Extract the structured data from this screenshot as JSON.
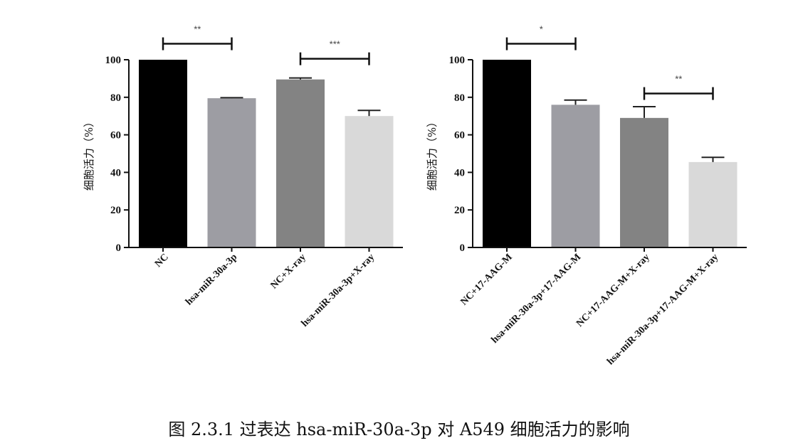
{
  "caption": "图 2.3.1 过表达 hsa-miR-30a-3p 对 A549 细胞活力的影响",
  "colors": [
    "#000000",
    "#9d9da3",
    "#838383",
    "#d9d9d9"
  ],
  "chart_data": [
    {
      "type": "bar",
      "ylabel": "细胞活力（%）",
      "ylim": [
        0,
        100
      ],
      "yticks": [
        "0",
        "20",
        "40",
        "60",
        "80",
        "100"
      ],
      "categories": [
        "NC",
        "hsa-miR-30a-3p",
        "NC+X-ray",
        "hsa-miR-30a-3p+X-ray"
      ],
      "values": [
        100,
        79.5,
        89.5,
        70
      ],
      "errors": [
        0,
        0.3,
        0.8,
        3
      ],
      "significance": [
        {
          "from": 0,
          "to": 1,
          "label": "**",
          "y": 108.5
        },
        {
          "from": 2,
          "to": 3,
          "label": "***",
          "y": 100.5
        }
      ]
    },
    {
      "type": "bar",
      "ylabel": "细胞活力（%）",
      "ylim": [
        0,
        100
      ],
      "yticks": [
        "0",
        "20",
        "40",
        "60",
        "80",
        "100"
      ],
      "categories": [
        "NC+17-AAG-M",
        "hsa-miR-30a-3p+17-AAG-M",
        "NC+17-AAG-M+X-ray",
        "hsa-miR-30a-3p+17-AAG-M+X-ray"
      ],
      "values": [
        100,
        76,
        69,
        45.5
      ],
      "errors": [
        0,
        2.5,
        6,
        2.5
      ],
      "significance": [
        {
          "from": 0,
          "to": 1,
          "label": "*",
          "y": 108.5
        },
        {
          "from": 2,
          "to": 3,
          "label": "**",
          "y": 82
        }
      ]
    }
  ]
}
